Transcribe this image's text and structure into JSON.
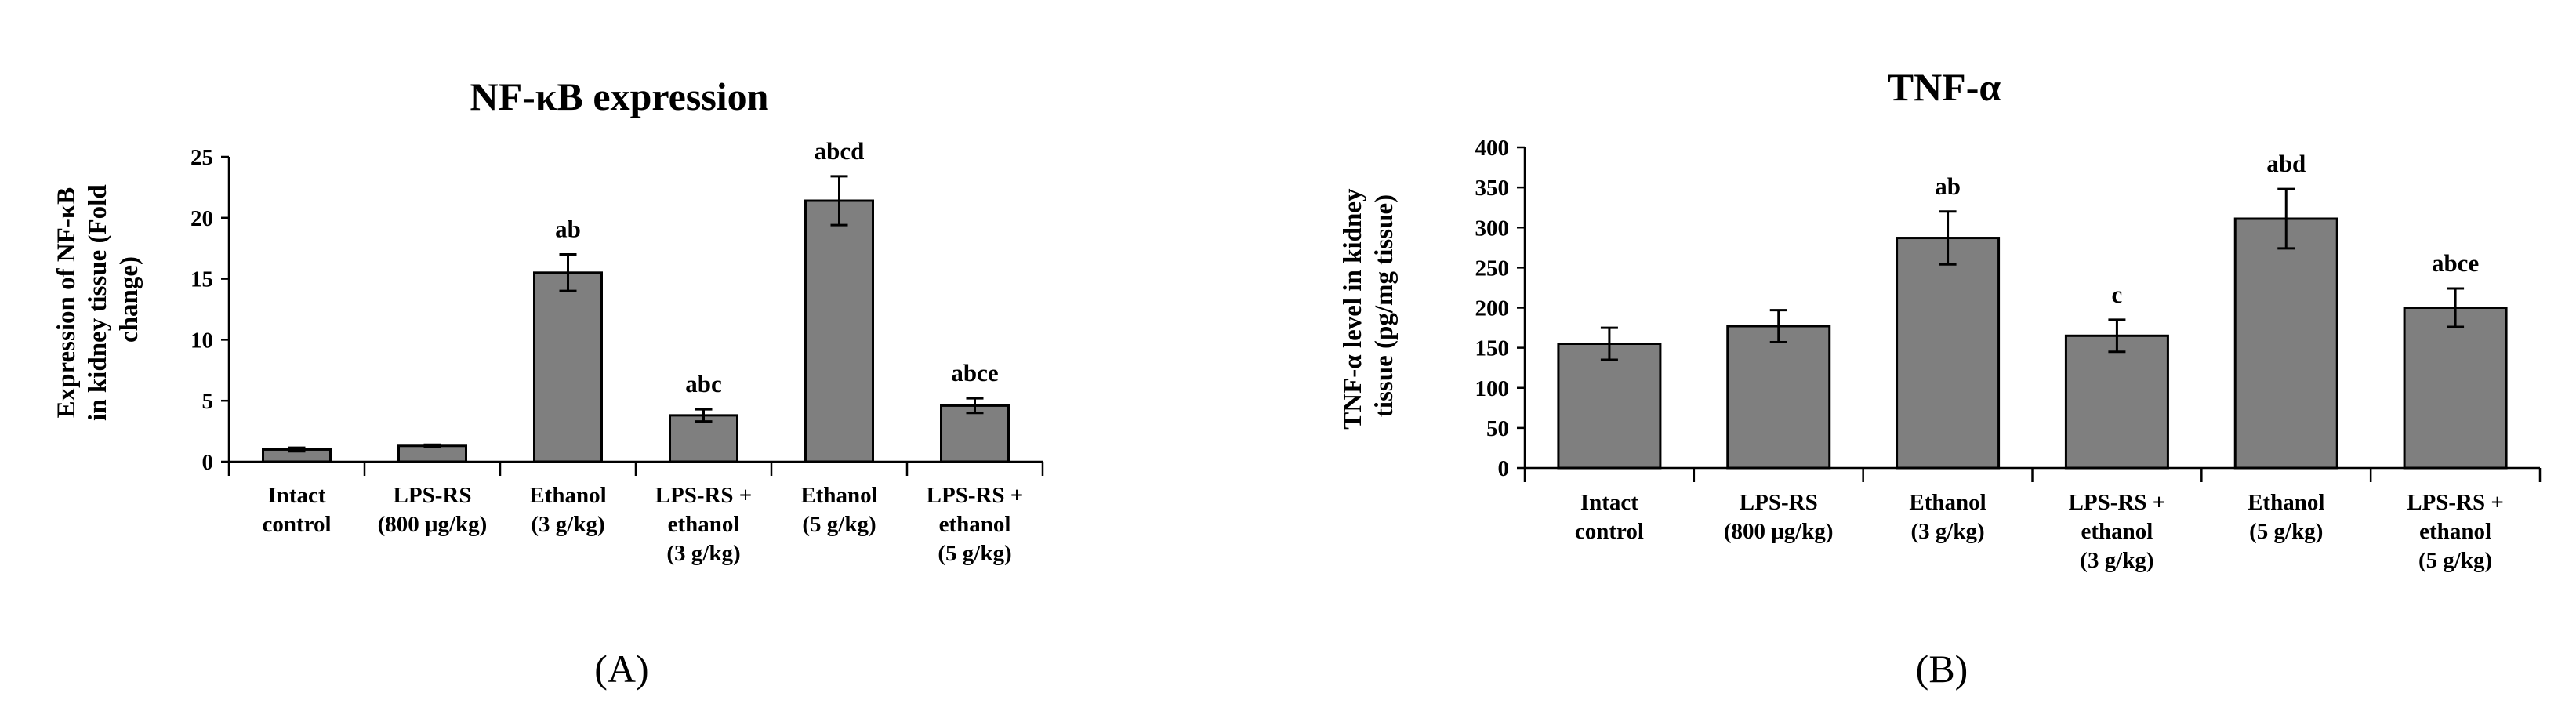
{
  "chart_data": [
    {
      "type": "bar",
      "panel_label": "(A)",
      "title": "NF-κB expression",
      "ylabel_lines": [
        "Expression of NF-κB",
        "in kidney tissue (Fold",
        "change)"
      ],
      "ylim": [
        0,
        25
      ],
      "yticks": [
        0,
        5,
        10,
        15,
        20,
        25
      ],
      "categories": [
        [
          "Intact",
          "control"
        ],
        [
          "LPS-RS",
          "(800 μg/kg)"
        ],
        [
          "Ethanol",
          "(3 g/kg)"
        ],
        [
          "LPS-RS +",
          "ethanol",
          "(3 g/kg)"
        ],
        [
          "Ethanol",
          "(5 g/kg)"
        ],
        [
          "LPS-RS +",
          "ethanol",
          "(5 g/kg)"
        ]
      ],
      "values": [
        1.0,
        1.3,
        15.5,
        3.8,
        21.4,
        4.6
      ],
      "errors": [
        0.15,
        0.1,
        1.5,
        0.5,
        2.0,
        0.6
      ],
      "significance": [
        "",
        "",
        "ab",
        "abc",
        "abcd",
        "abce"
      ],
      "bar_color": "#7f7f7f"
    },
    {
      "type": "bar",
      "panel_label": "(B)",
      "title": "TNF-α",
      "ylabel_lines": [
        "TNF-α level in kidney",
        "tissue (pg/mg tissue)"
      ],
      "ylim": [
        0,
        400
      ],
      "yticks": [
        0,
        50,
        100,
        150,
        200,
        250,
        300,
        350,
        400
      ],
      "categories": [
        [
          "Intact",
          "control"
        ],
        [
          "LPS-RS",
          "(800 μg/kg)"
        ],
        [
          "Ethanol",
          "(3 g/kg)"
        ],
        [
          "LPS-RS +",
          "ethanol",
          "(3 g/kg)"
        ],
        [
          "Ethanol",
          "(5 g/kg)"
        ],
        [
          "LPS-RS +",
          "ethanol",
          "(5 g/kg)"
        ]
      ],
      "values": [
        155,
        177,
        287,
        165,
        311,
        200
      ],
      "errors": [
        20,
        20,
        33,
        20,
        37,
        24
      ],
      "significance": [
        "",
        "",
        "ab",
        "c",
        "abd",
        "abce"
      ],
      "bar_color": "#7f7f7f"
    }
  ]
}
